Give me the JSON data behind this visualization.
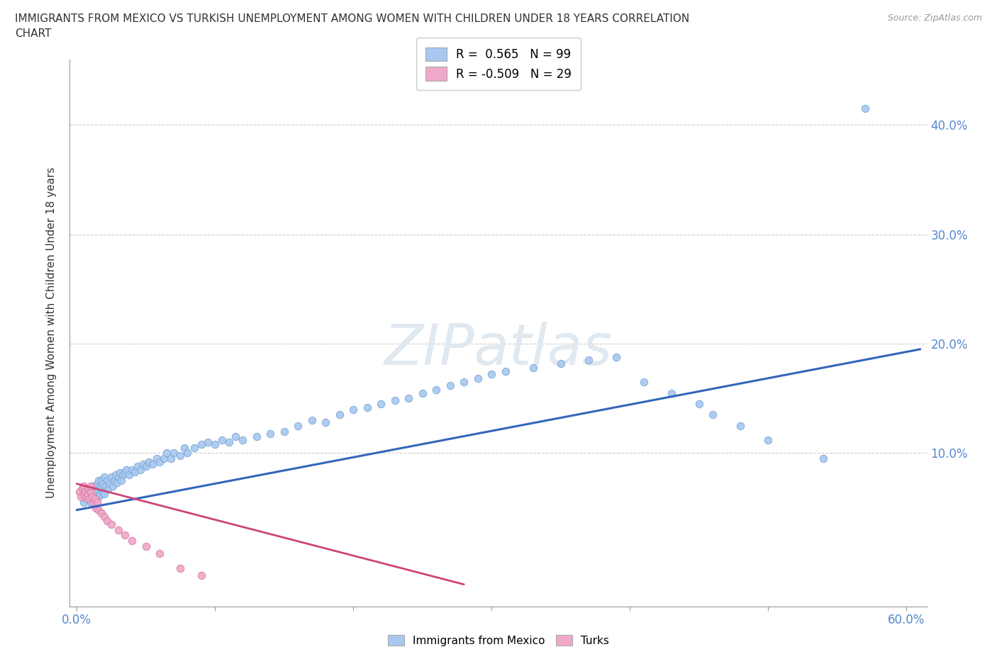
{
  "title_line1": "IMMIGRANTS FROM MEXICO VS TURKISH UNEMPLOYMENT AMONG WOMEN WITH CHILDREN UNDER 18 YEARS CORRELATION",
  "title_line2": "CHART",
  "source_text": "Source: ZipAtlas.com",
  "ylabel": "Unemployment Among Women with Children Under 18 years",
  "xlim": [
    -0.005,
    0.615
  ],
  "ylim": [
    -0.04,
    0.46
  ],
  "blue_color": "#a8c8f0",
  "blue_edge_color": "#80aad8",
  "pink_color": "#f0a8c8",
  "pink_edge_color": "#d880a8",
  "blue_line_color": "#3366bb",
  "pink_line_color": "#cc4477",
  "watermark_color": "#e0e8f0",
  "blue_trend_x": [
    0.0,
    0.61
  ],
  "blue_trend_y": [
    0.048,
    0.195
  ],
  "pink_trend_x": [
    0.0,
    0.28
  ],
  "pink_trend_y": [
    0.072,
    -0.02
  ],
  "blue_x": [
    0.005,
    0.006,
    0.007,
    0.008,
    0.009,
    0.01,
    0.01,
    0.011,
    0.011,
    0.012,
    0.012,
    0.013,
    0.013,
    0.014,
    0.014,
    0.015,
    0.015,
    0.016,
    0.016,
    0.017,
    0.017,
    0.018,
    0.018,
    0.019,
    0.019,
    0.02,
    0.02,
    0.021,
    0.022,
    0.023,
    0.024,
    0.025,
    0.026,
    0.027,
    0.028,
    0.029,
    0.03,
    0.031,
    0.032,
    0.033,
    0.035,
    0.036,
    0.038,
    0.04,
    0.042,
    0.044,
    0.046,
    0.048,
    0.05,
    0.052,
    0.055,
    0.058,
    0.06,
    0.063,
    0.065,
    0.068,
    0.07,
    0.075,
    0.078,
    0.08,
    0.085,
    0.09,
    0.095,
    0.1,
    0.105,
    0.11,
    0.115,
    0.12,
    0.13,
    0.14,
    0.15,
    0.16,
    0.17,
    0.18,
    0.19,
    0.2,
    0.21,
    0.22,
    0.23,
    0.24,
    0.25,
    0.26,
    0.27,
    0.28,
    0.29,
    0.3,
    0.31,
    0.33,
    0.35,
    0.37,
    0.39,
    0.41,
    0.43,
    0.45,
    0.46,
    0.48,
    0.5,
    0.54,
    0.57
  ],
  "blue_y": [
    0.055,
    0.06,
    0.058,
    0.065,
    0.062,
    0.055,
    0.068,
    0.06,
    0.07,
    0.065,
    0.058,
    0.063,
    0.07,
    0.06,
    0.068,
    0.065,
    0.072,
    0.06,
    0.075,
    0.063,
    0.07,
    0.068,
    0.075,
    0.065,
    0.072,
    0.063,
    0.078,
    0.07,
    0.075,
    0.068,
    0.072,
    0.078,
    0.07,
    0.075,
    0.08,
    0.073,
    0.078,
    0.082,
    0.075,
    0.08,
    0.082,
    0.085,
    0.08,
    0.085,
    0.083,
    0.088,
    0.085,
    0.09,
    0.088,
    0.092,
    0.09,
    0.095,
    0.092,
    0.095,
    0.1,
    0.095,
    0.1,
    0.098,
    0.105,
    0.1,
    0.105,
    0.108,
    0.11,
    0.108,
    0.112,
    0.11,
    0.115,
    0.112,
    0.115,
    0.118,
    0.12,
    0.125,
    0.13,
    0.128,
    0.135,
    0.14,
    0.142,
    0.145,
    0.148,
    0.15,
    0.155,
    0.158,
    0.162,
    0.165,
    0.168,
    0.172,
    0.175,
    0.178,
    0.182,
    0.185,
    0.188,
    0.165,
    0.155,
    0.145,
    0.135,
    0.125,
    0.112,
    0.095,
    0.415
  ],
  "pink_x": [
    0.002,
    0.003,
    0.004,
    0.005,
    0.005,
    0.006,
    0.007,
    0.008,
    0.008,
    0.009,
    0.01,
    0.01,
    0.011,
    0.012,
    0.013,
    0.014,
    0.015,
    0.016,
    0.018,
    0.02,
    0.022,
    0.025,
    0.03,
    0.035,
    0.04,
    0.05,
    0.06,
    0.075,
    0.09
  ],
  "pink_y": [
    0.065,
    0.06,
    0.068,
    0.062,
    0.07,
    0.065,
    0.06,
    0.068,
    0.062,
    0.058,
    0.065,
    0.07,
    0.06,
    0.055,
    0.058,
    0.05,
    0.055,
    0.048,
    0.045,
    0.042,
    0.038,
    0.035,
    0.03,
    0.025,
    0.02,
    0.015,
    0.008,
    -0.005,
    -0.012
  ]
}
